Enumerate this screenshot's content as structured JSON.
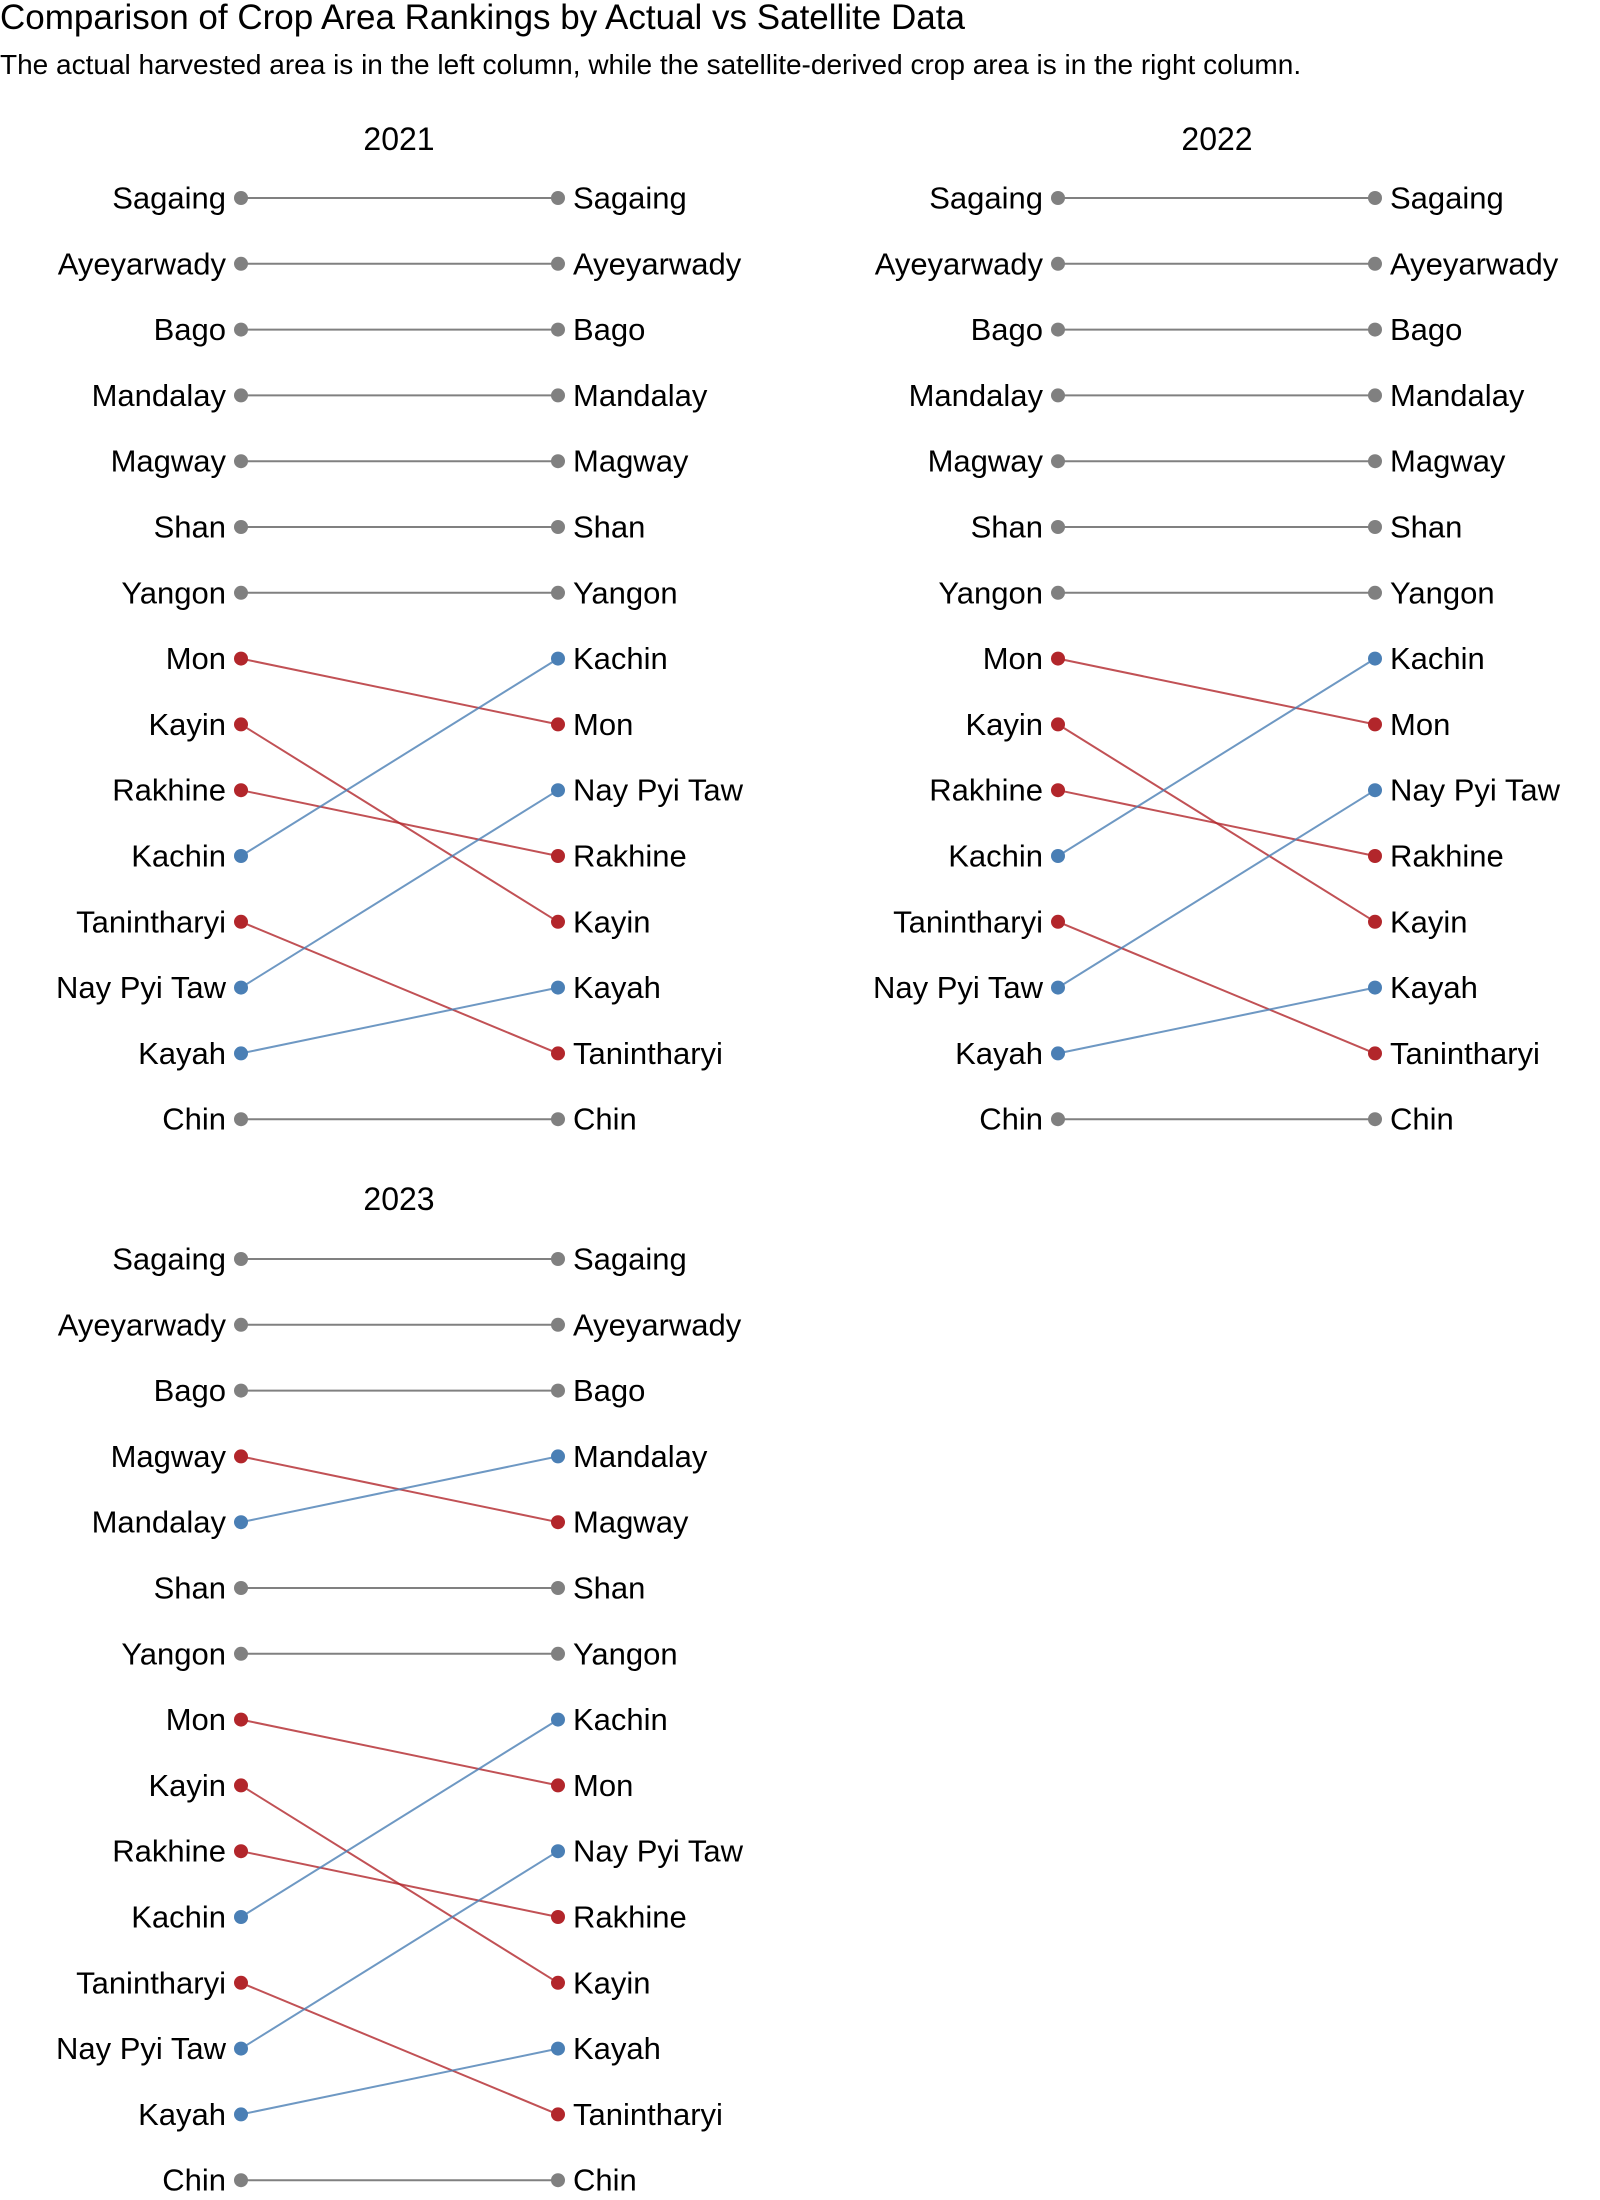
{
  "chart_data": {
    "type": "slope",
    "title": "Comparison of Crop Area Rankings by Actual vs Satellite Data",
    "subtitle": "The actual harvested area is in the left column, while the satellite-derived crop area is in the right column.",
    "colors": {
      "same": "#808080",
      "down": "#b2262b",
      "up": "#4a7fb5"
    },
    "panels": [
      {
        "title": "2021",
        "left": [
          "Sagaing",
          "Ayeyarwady",
          "Bago",
          "Mandalay",
          "Magway",
          "Shan",
          "Yangon",
          "Mon",
          "Kayin",
          "Rakhine",
          "Kachin",
          "Tanintharyi",
          "Nay Pyi Taw",
          "Kayah",
          "Chin"
        ],
        "right": [
          "Sagaing",
          "Ayeyarwady",
          "Bago",
          "Mandalay",
          "Magway",
          "Shan",
          "Yangon",
          "Kachin",
          "Mon",
          "Nay Pyi Taw",
          "Rakhine",
          "Kayin",
          "Kayah",
          "Tanintharyi",
          "Chin"
        ]
      },
      {
        "title": "2022",
        "left": [
          "Sagaing",
          "Ayeyarwady",
          "Bago",
          "Mandalay",
          "Magway",
          "Shan",
          "Yangon",
          "Mon",
          "Kayin",
          "Rakhine",
          "Kachin",
          "Tanintharyi",
          "Nay Pyi Taw",
          "Kayah",
          "Chin"
        ],
        "right": [
          "Sagaing",
          "Ayeyarwady",
          "Bago",
          "Mandalay",
          "Magway",
          "Shan",
          "Yangon",
          "Kachin",
          "Mon",
          "Nay Pyi Taw",
          "Rakhine",
          "Kayin",
          "Kayah",
          "Tanintharyi",
          "Chin"
        ]
      },
      {
        "title": "2023",
        "left": [
          "Sagaing",
          "Ayeyarwady",
          "Bago",
          "Magway",
          "Mandalay",
          "Shan",
          "Yangon",
          "Mon",
          "Kayin",
          "Rakhine",
          "Kachin",
          "Tanintharyi",
          "Nay Pyi Taw",
          "Kayah",
          "Chin"
        ],
        "right": [
          "Sagaing",
          "Ayeyarwady",
          "Bago",
          "Mandalay",
          "Magway",
          "Shan",
          "Yangon",
          "Kachin",
          "Mon",
          "Nay Pyi Taw",
          "Rakhine",
          "Kayin",
          "Kayah",
          "Tanintharyi",
          "Chin"
        ]
      }
    ]
  }
}
